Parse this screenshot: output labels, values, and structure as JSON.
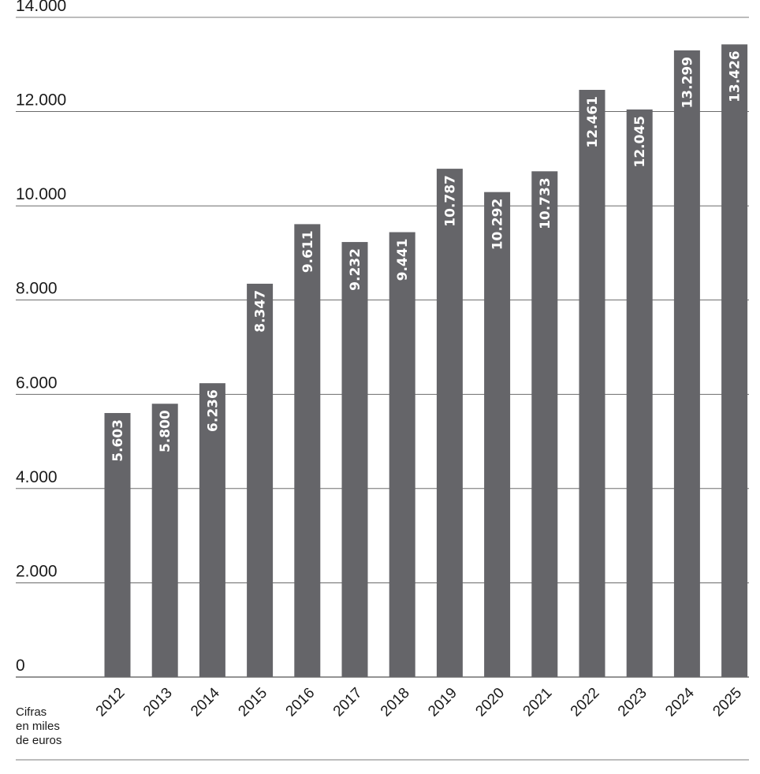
{
  "chart_data": {
    "type": "bar",
    "categories": [
      "2012",
      "2013",
      "2014",
      "2015",
      "2016",
      "2017",
      "2018",
      "2019",
      "2020",
      "2021",
      "2022",
      "2023",
      "2024",
      "2025"
    ],
    "values": [
      5603,
      5800,
      6236,
      8347,
      9611,
      9232,
      9441,
      10787,
      10292,
      10733,
      12461,
      12045,
      13299,
      13426
    ],
    "value_labels": [
      "5.603",
      "5.800",
      "6.236",
      "8.347",
      "9.611",
      "9.232",
      "9.441",
      "10.787",
      "10.292",
      "10.733",
      "12.461",
      "12.045",
      "13.299",
      "13.426"
    ],
    "y_ticks": [
      0,
      2000,
      4000,
      6000,
      8000,
      10000,
      12000,
      14000
    ],
    "y_tick_labels": [
      "0",
      "2.000",
      "4.000",
      "6.000",
      "8.000",
      "10.000",
      "12.000",
      "14.000"
    ],
    "ylim": [
      0,
      14000
    ],
    "grid": true,
    "colors": {
      "bar": "#656569",
      "grid": "#555555",
      "value_text": "#ffffff"
    }
  },
  "unit_note": {
    "line1": "Cifras",
    "line2": "en miles",
    "line3": "de euros"
  }
}
